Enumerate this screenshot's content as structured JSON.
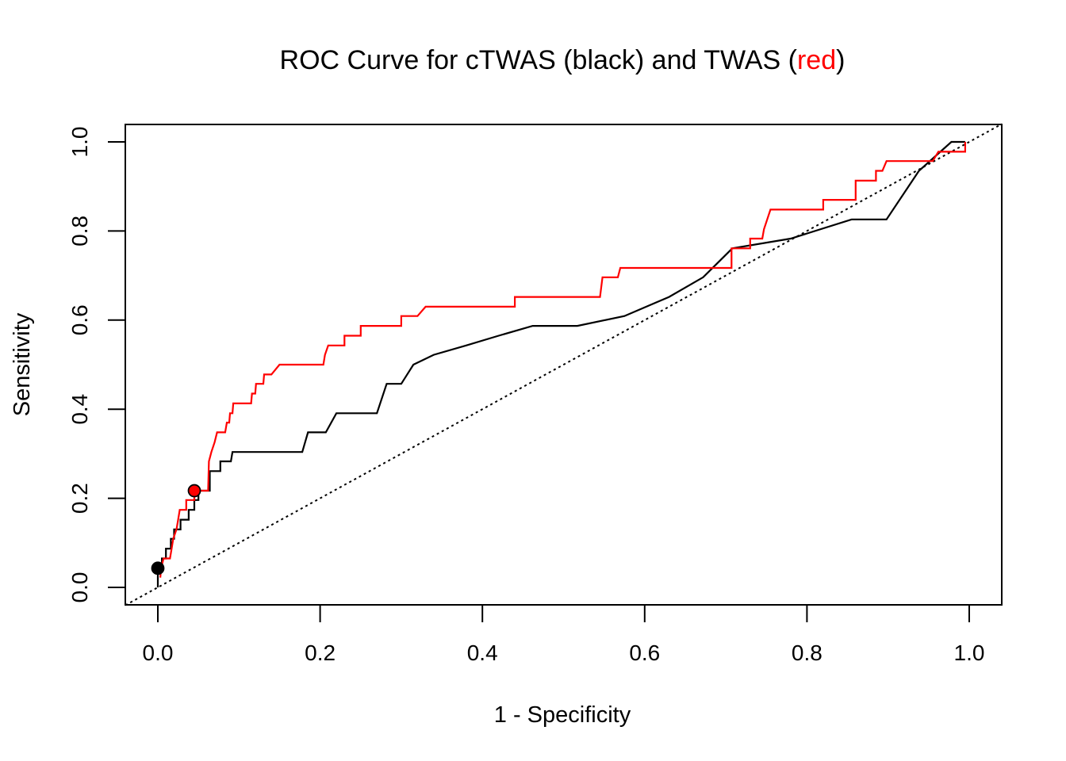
{
  "chart_data": {
    "type": "line",
    "title": {
      "prefix": "ROC Curve for cTWAS (black) and TWAS (",
      "highlight": "red",
      "suffix": ")"
    },
    "xlabel": "1 - Specificity",
    "ylabel": "Sensitivity",
    "xlim": [
      0,
      1
    ],
    "ylim": [
      0,
      1
    ],
    "x_ticks": [
      0.0,
      0.2,
      0.4,
      0.6,
      0.8,
      1.0
    ],
    "y_ticks": [
      0.0,
      0.2,
      0.4,
      0.6,
      0.8,
      1.0
    ],
    "x_tick_labels": [
      "0.0",
      "0.2",
      "0.4",
      "0.6",
      "0.8",
      "1.0"
    ],
    "y_tick_labels": [
      "0.0",
      "0.2",
      "0.4",
      "0.6",
      "0.8",
      "1.0"
    ],
    "grid": false,
    "legend": "none",
    "reference_line": {
      "from": [
        0,
        0
      ],
      "to": [
        1,
        1
      ],
      "style": "dotted",
      "color": "#000000"
    },
    "series": [
      {
        "color": "#000000",
        "marker": {
          "x": 0.0,
          "y": 0.043,
          "fill": "#000000"
        },
        "points": [
          [
            0.0,
            0.0
          ],
          [
            0.0,
            0.043
          ],
          [
            0.005,
            0.043
          ],
          [
            0.005,
            0.065
          ],
          [
            0.01,
            0.065
          ],
          [
            0.01,
            0.087
          ],
          [
            0.016,
            0.087
          ],
          [
            0.016,
            0.109
          ],
          [
            0.02,
            0.109
          ],
          [
            0.02,
            0.13
          ],
          [
            0.028,
            0.13
          ],
          [
            0.028,
            0.152
          ],
          [
            0.038,
            0.152
          ],
          [
            0.038,
            0.174
          ],
          [
            0.045,
            0.174
          ],
          [
            0.045,
            0.196
          ],
          [
            0.05,
            0.196
          ],
          [
            0.05,
            0.217
          ],
          [
            0.064,
            0.217
          ],
          [
            0.064,
            0.261
          ],
          [
            0.077,
            0.261
          ],
          [
            0.077,
            0.283
          ],
          [
            0.09,
            0.283
          ],
          [
            0.092,
            0.304
          ],
          [
            0.178,
            0.304
          ],
          [
            0.185,
            0.348
          ],
          [
            0.207,
            0.348
          ],
          [
            0.22,
            0.391
          ],
          [
            0.27,
            0.391
          ],
          [
            0.282,
            0.457
          ],
          [
            0.3,
            0.457
          ],
          [
            0.315,
            0.5
          ],
          [
            0.34,
            0.522
          ],
          [
            0.38,
            0.543
          ],
          [
            0.42,
            0.565
          ],
          [
            0.462,
            0.587
          ],
          [
            0.517,
            0.587
          ],
          [
            0.575,
            0.609
          ],
          [
            0.63,
            0.652
          ],
          [
            0.672,
            0.696
          ],
          [
            0.708,
            0.761
          ],
          [
            0.78,
            0.783
          ],
          [
            0.855,
            0.826
          ],
          [
            0.898,
            0.826
          ],
          [
            0.938,
            0.935
          ],
          [
            0.978,
            1.0
          ],
          [
            0.995,
            1.0
          ]
        ]
      },
      {
        "color": "#ff0000",
        "marker": {
          "x": 0.045,
          "y": 0.217,
          "fill": "#ff0000"
        },
        "points": [
          [
            0.003,
            0.022
          ],
          [
            0.004,
            0.043
          ],
          [
            0.007,
            0.065
          ],
          [
            0.015,
            0.065
          ],
          [
            0.017,
            0.087
          ],
          [
            0.019,
            0.109
          ],
          [
            0.023,
            0.13
          ],
          [
            0.025,
            0.152
          ],
          [
            0.027,
            0.174
          ],
          [
            0.035,
            0.174
          ],
          [
            0.035,
            0.196
          ],
          [
            0.045,
            0.196
          ],
          [
            0.045,
            0.217
          ],
          [
            0.062,
            0.217
          ],
          [
            0.063,
            0.283
          ],
          [
            0.066,
            0.304
          ],
          [
            0.07,
            0.326
          ],
          [
            0.073,
            0.348
          ],
          [
            0.083,
            0.348
          ],
          [
            0.085,
            0.37
          ],
          [
            0.088,
            0.37
          ],
          [
            0.089,
            0.391
          ],
          [
            0.092,
            0.391
          ],
          [
            0.093,
            0.413
          ],
          [
            0.115,
            0.413
          ],
          [
            0.116,
            0.435
          ],
          [
            0.12,
            0.435
          ],
          [
            0.121,
            0.457
          ],
          [
            0.13,
            0.457
          ],
          [
            0.131,
            0.478
          ],
          [
            0.14,
            0.478
          ],
          [
            0.15,
            0.5
          ],
          [
            0.204,
            0.5
          ],
          [
            0.206,
            0.522
          ],
          [
            0.21,
            0.543
          ],
          [
            0.23,
            0.543
          ],
          [
            0.23,
            0.565
          ],
          [
            0.25,
            0.565
          ],
          [
            0.25,
            0.587
          ],
          [
            0.3,
            0.587
          ],
          [
            0.3,
            0.609
          ],
          [
            0.32,
            0.609
          ],
          [
            0.33,
            0.63
          ],
          [
            0.44,
            0.63
          ],
          [
            0.44,
            0.652
          ],
          [
            0.545,
            0.652
          ],
          [
            0.548,
            0.696
          ],
          [
            0.567,
            0.696
          ],
          [
            0.57,
            0.717
          ],
          [
            0.707,
            0.717
          ],
          [
            0.707,
            0.761
          ],
          [
            0.73,
            0.761
          ],
          [
            0.73,
            0.783
          ],
          [
            0.745,
            0.783
          ],
          [
            0.747,
            0.804
          ],
          [
            0.755,
            0.848
          ],
          [
            0.82,
            0.848
          ],
          [
            0.82,
            0.87
          ],
          [
            0.86,
            0.87
          ],
          [
            0.86,
            0.913
          ],
          [
            0.885,
            0.913
          ],
          [
            0.885,
            0.935
          ],
          [
            0.893,
            0.935
          ],
          [
            0.898,
            0.957
          ],
          [
            0.955,
            0.957
          ],
          [
            0.962,
            0.978
          ],
          [
            0.995,
            0.978
          ],
          [
            0.995,
            1.0
          ]
        ]
      }
    ]
  }
}
